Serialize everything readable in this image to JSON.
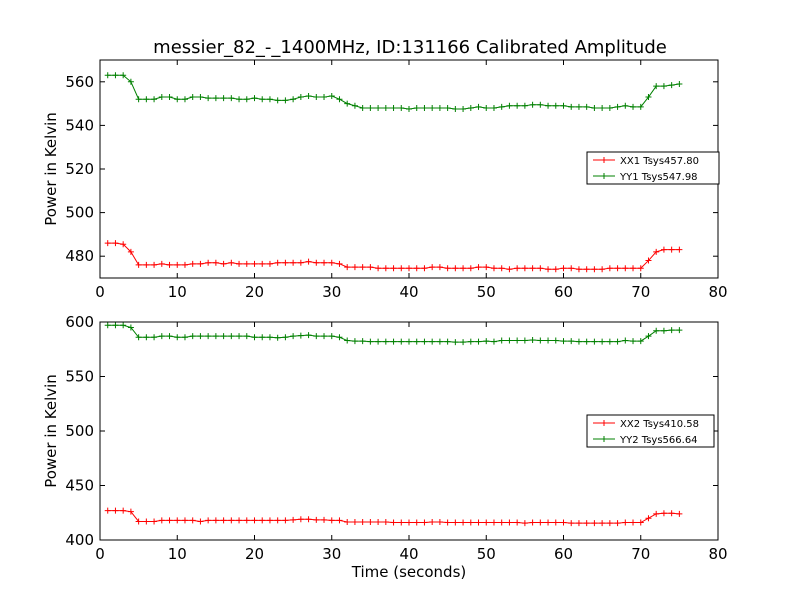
{
  "figure": {
    "title": "messier_82_-_1400MHz, ID:131166 Calibrated Amplitude"
  },
  "chart_data": [
    {
      "type": "line",
      "title": "messier_82_-_1400MHz, ID:131166 Calibrated Amplitude",
      "xlabel": "",
      "ylabel": "Power in Kelvin",
      "xlim": [
        0,
        80
      ],
      "ylim": [
        470,
        570
      ],
      "xticks": [
        0,
        10,
        20,
        30,
        40,
        50,
        60,
        70,
        80
      ],
      "yticks": [
        480,
        500,
        520,
        540,
        560
      ],
      "grid": false,
      "legend_position": "right",
      "x": [
        1,
        2,
        3,
        4,
        5,
        6,
        7,
        8,
        9,
        10,
        11,
        12,
        13,
        14,
        15,
        16,
        17,
        18,
        19,
        20,
        21,
        22,
        23,
        24,
        25,
        26,
        27,
        28,
        29,
        30,
        31,
        32,
        33,
        34,
        35,
        36,
        37,
        38,
        39,
        40,
        41,
        42,
        43,
        44,
        45,
        46,
        47,
        48,
        49,
        50,
        51,
        52,
        53,
        54,
        55,
        56,
        57,
        58,
        59,
        60,
        61,
        62,
        63,
        64,
        65,
        66,
        67,
        68,
        69,
        70,
        71,
        72,
        73,
        74,
        75
      ],
      "series": [
        {
          "name": "XX1 Tsys457.80",
          "color": "#ff0000",
          "values": [
            486,
            486,
            485.5,
            482,
            476,
            476,
            476,
            476.5,
            476,
            476,
            476,
            476.5,
            476.5,
            477,
            477,
            476.5,
            477,
            476.5,
            476.5,
            476.5,
            476.5,
            476.5,
            477,
            477,
            477,
            477,
            477.5,
            477,
            477,
            477,
            476.5,
            475,
            475,
            475,
            475,
            474.5,
            474.5,
            474.5,
            474.5,
            474.5,
            474.5,
            474.5,
            475,
            475,
            474.5,
            474.5,
            474.5,
            474.5,
            475,
            475,
            474.5,
            474.5,
            474,
            474.5,
            474.5,
            474.5,
            474.5,
            474,
            474,
            474.5,
            474.5,
            474,
            474,
            474,
            474,
            474.5,
            474.5,
            474.5,
            474.5,
            474.5,
            478,
            482,
            483,
            483,
            483
          ]
        },
        {
          "name": "YY1 Tsys547.98",
          "color": "#008000",
          "values": [
            563,
            563,
            563,
            560,
            552,
            552,
            552,
            553,
            553,
            552,
            552,
            553,
            553,
            552.5,
            552.5,
            552.5,
            552.5,
            552,
            552,
            552.5,
            552,
            552,
            551.5,
            551.5,
            552,
            553,
            553.5,
            553,
            553,
            553.5,
            552,
            550,
            549,
            548,
            548,
            548,
            548,
            548,
            548,
            547.5,
            548,
            548,
            548,
            548,
            548,
            547.5,
            547.5,
            548,
            548.5,
            548,
            548,
            548.5,
            549,
            549,
            549,
            549.5,
            549.5,
            549,
            549,
            549,
            548.5,
            548.5,
            548.5,
            548,
            548,
            548,
            548.5,
            549,
            548.5,
            548.5,
            553,
            558,
            558,
            558.5,
            559
          ]
        }
      ]
    },
    {
      "type": "line",
      "title": "",
      "xlabel": "Time (seconds)",
      "ylabel": "Power in Kelvin",
      "xlim": [
        0,
        80
      ],
      "ylim": [
        400,
        600
      ],
      "xticks": [
        0,
        10,
        20,
        30,
        40,
        50,
        60,
        70,
        80
      ],
      "yticks": [
        400,
        450,
        500,
        550,
        600
      ],
      "grid": false,
      "legend_position": "right",
      "x": [
        1,
        2,
        3,
        4,
        5,
        6,
        7,
        8,
        9,
        10,
        11,
        12,
        13,
        14,
        15,
        16,
        17,
        18,
        19,
        20,
        21,
        22,
        23,
        24,
        25,
        26,
        27,
        28,
        29,
        30,
        31,
        32,
        33,
        34,
        35,
        36,
        37,
        38,
        39,
        40,
        41,
        42,
        43,
        44,
        45,
        46,
        47,
        48,
        49,
        50,
        51,
        52,
        53,
        54,
        55,
        56,
        57,
        58,
        59,
        60,
        61,
        62,
        63,
        64,
        65,
        66,
        67,
        68,
        69,
        70,
        71,
        72,
        73,
        74,
        75
      ],
      "series": [
        {
          "name": "XX2 Tsys410.58",
          "color": "#ff0000",
          "values": [
            427,
            427,
            427,
            426,
            417,
            417,
            417,
            418,
            418,
            418,
            418,
            418,
            417,
            418,
            418,
            418,
            418,
            418,
            418,
            418,
            418,
            418,
            418,
            418,
            418.5,
            419,
            419,
            418.5,
            418.5,
            418,
            418,
            416.5,
            416.5,
            416.5,
            416.5,
            416.5,
            416.5,
            416,
            416,
            416,
            416,
            416,
            416.5,
            416.5,
            416,
            416,
            416,
            416,
            416,
            416,
            416,
            416,
            416,
            416,
            415.5,
            416,
            416,
            416,
            416,
            416,
            415.5,
            415.5,
            415.5,
            415.5,
            415.5,
            415.5,
            415.5,
            416,
            416,
            416,
            420,
            424,
            424.5,
            424.5,
            424
          ]
        },
        {
          "name": "YY2 Tsys566.64",
          "color": "#008000",
          "values": [
            597,
            597,
            597,
            595,
            586,
            586,
            586,
            587,
            587,
            586,
            586,
            587,
            587,
            587,
            587,
            587,
            587,
            587,
            587,
            586,
            586,
            586,
            585.5,
            586,
            587,
            587.5,
            588,
            587,
            587,
            587,
            586,
            583,
            582.5,
            582.5,
            582,
            582,
            582,
            582,
            582,
            582,
            582,
            582,
            582,
            582,
            582,
            581.5,
            581.5,
            582,
            582,
            582.5,
            582,
            583,
            583,
            583,
            583,
            583.5,
            583,
            583,
            583,
            582.5,
            582.5,
            582,
            582,
            582,
            582,
            582,
            582,
            583,
            582.5,
            582.5,
            587,
            592,
            592,
            592.5,
            592.5
          ]
        }
      ]
    }
  ]
}
